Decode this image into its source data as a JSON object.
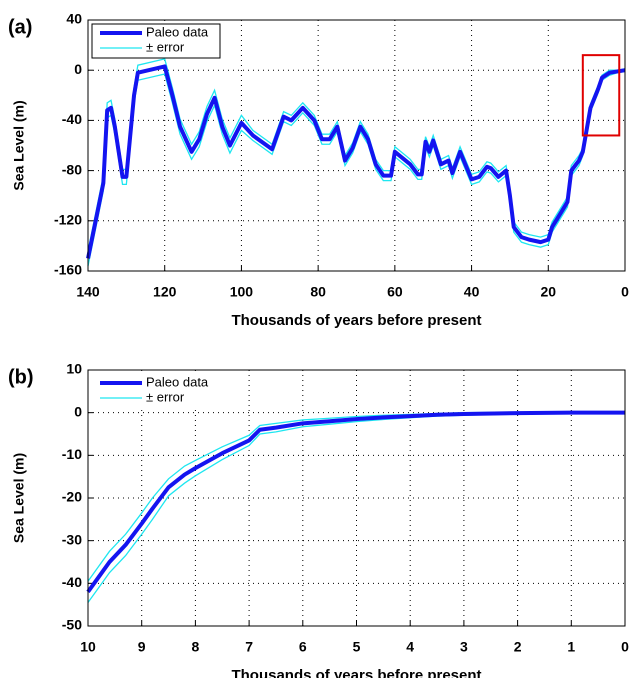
{
  "chart_data": [
    {
      "type": "line",
      "label": "(a)",
      "x_label": "Thousands of years before present",
      "y_label": "Sea Level (m)",
      "x": [
        140,
        138,
        136,
        135,
        134,
        133,
        131,
        130,
        128,
        127,
        120,
        118,
        116,
        113,
        111,
        109,
        107,
        105,
        103,
        100,
        97,
        92,
        89,
        87,
        84,
        81,
        79,
        77,
        75,
        73,
        71,
        69,
        67,
        65,
        63,
        61,
        60,
        58,
        56,
        54,
        53,
        52,
        51,
        50,
        48,
        46,
        45,
        43,
        40,
        38,
        36,
        35,
        33,
        31,
        30,
        29,
        27,
        25,
        22,
        20,
        19,
        17,
        15,
        14,
        12,
        11,
        9,
        7,
        6,
        4,
        2,
        0
      ],
      "series": [
        {
          "name": "Paleo data",
          "color": "#1414f0",
          "values": [
            -150,
            -120,
            -90,
            -32,
            -30,
            -45,
            -85,
            -85,
            -20,
            -2,
            3,
            -20,
            -45,
            -65,
            -55,
            -35,
            -22,
            -45,
            -60,
            -42,
            -52,
            -63,
            -37,
            -40,
            -30,
            -40,
            -55,
            -55,
            -45,
            -72,
            -62,
            -45,
            -55,
            -75,
            -84,
            -84,
            -65,
            -70,
            -75,
            -83,
            -83,
            -57,
            -65,
            -56,
            -75,
            -72,
            -82,
            -65,
            -87,
            -85,
            -77,
            -78,
            -85,
            -80,
            -100,
            -125,
            -133,
            -135,
            -137,
            -135,
            -125,
            -115,
            -105,
            -80,
            -72,
            -65,
            -30,
            -15,
            -6,
            -2,
            -1,
            0
          ]
        },
        {
          "name": "± error",
          "color": "#1ee6f0",
          "error": true,
          "values": [
            6,
            6,
            6,
            6,
            6,
            6,
            6,
            6,
            6,
            6,
            6,
            6,
            6,
            6,
            6,
            6,
            6,
            6,
            6,
            6,
            4,
            4,
            4,
            4,
            4,
            4,
            4,
            4,
            4,
            4,
            4,
            4,
            4,
            4,
            4,
            4,
            4,
            4,
            4,
            4,
            4,
            4,
            4,
            4,
            4,
            4,
            4,
            4,
            4,
            4,
            4,
            4,
            4,
            4,
            4,
            4,
            4,
            4,
            4,
            4,
            4,
            4,
            4,
            4,
            4,
            3,
            3,
            3,
            2,
            2,
            1,
            1
          ]
        }
      ],
      "xlim": [
        140,
        0
      ],
      "ylim": [
        -160,
        40
      ],
      "xticks": [
        140,
        120,
        100,
        80,
        60,
        40,
        20,
        0
      ],
      "yticks": [
        -160,
        -120,
        -80,
        -40,
        0,
        40
      ],
      "grid": true,
      "legend": "upper left",
      "highlight": {
        "x": [
          11,
          1.5
        ],
        "y": [
          -52,
          12
        ],
        "color": "#e00000"
      }
    },
    {
      "type": "line",
      "label": "(b)",
      "x_label": "Thousands of years before present",
      "y_label": "Sea Level (m)",
      "x": [
        10,
        9.8,
        9.6,
        9.3,
        9,
        8.8,
        8.5,
        8.2,
        8,
        7.5,
        7,
        6.8,
        6.5,
        6,
        5.5,
        5,
        4.5,
        4,
        3.5,
        3,
        2,
        1,
        0
      ],
      "series": [
        {
          "name": "Paleo data",
          "color": "#1414f0",
          "values": [
            -42,
            -38.5,
            -35,
            -31,
            -26,
            -22.5,
            -17.5,
            -14.5,
            -13,
            -9.5,
            -6.5,
            -4,
            -3.5,
            -2.5,
            -2,
            -1.5,
            -1.1,
            -0.8,
            -0.5,
            -0.3,
            -0.1,
            0,
            0
          ]
        },
        {
          "name": "± error",
          "color": "#1ee6f0",
          "error": true,
          "values": [
            2.5,
            2.5,
            2.5,
            2.5,
            2.5,
            2.5,
            2,
            2,
            1.8,
            1.5,
            1.2,
            1,
            1,
            0.8,
            0.7,
            0.6,
            0.5,
            0.4,
            0.3,
            0.3,
            0.2,
            0.1,
            0.1
          ]
        }
      ],
      "xlim": [
        10,
        0
      ],
      "ylim": [
        -50,
        10
      ],
      "xticks": [
        10,
        9,
        8,
        7,
        6,
        5,
        4,
        3,
        2,
        1,
        0
      ],
      "yticks": [
        -50,
        -40,
        -30,
        -20,
        -10,
        0,
        10
      ],
      "grid": true,
      "legend": "upper left"
    }
  ]
}
